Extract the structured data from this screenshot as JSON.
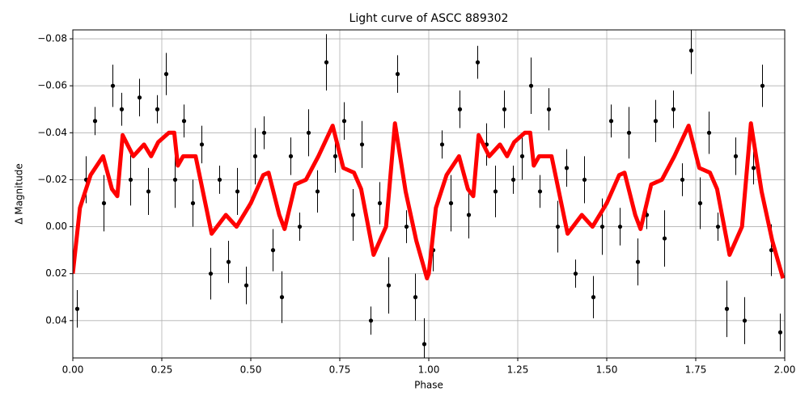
{
  "chart_data": {
    "type": "scatter",
    "title": "Light curve of ASCC 889302",
    "xlabel": "Phase",
    "ylabel": "Δ Magnitude",
    "xlim": [
      0,
      2
    ],
    "ylim": [
      0.0559,
      -0.0838
    ],
    "grid": true,
    "xticks": [
      {
        "value": 0,
        "label": "0.00"
      },
      {
        "value": 0.25,
        "label": "0.25"
      },
      {
        "value": 0.5,
        "label": "0.50"
      },
      {
        "value": 0.75,
        "label": "0.75"
      },
      {
        "value": 1,
        "label": "1.00"
      },
      {
        "value": 1.25,
        "label": "1.25"
      },
      {
        "value": 1.5,
        "label": "1.50"
      },
      {
        "value": 1.75,
        "label": "1.75"
      },
      {
        "value": 2,
        "label": "2.00"
      }
    ],
    "yticks": [
      {
        "value": -0.08,
        "label": "−0.08"
      },
      {
        "value": -0.06,
        "label": "−0.06"
      },
      {
        "value": -0.04,
        "label": "−0.04"
      },
      {
        "value": -0.02,
        "label": "−0.02"
      },
      {
        "value": 0,
        "label": "0.00"
      },
      0.02,
      0.04
    ],
    "series": [
      {
        "color": "#000000",
        "x": [
          0.0125,
          0.0375,
          0.0625,
          0.0875,
          0.1125,
          0.1375,
          0.1625,
          0.1875,
          0.2125,
          0.2375,
          0.2625,
          0.2875,
          0.3125,
          0.3375,
          0.3625,
          0.3875,
          0.4125,
          0.4375,
          0.4625,
          0.4875,
          0.5125,
          0.5375,
          0.5625,
          0.5875,
          0.6125,
          0.6375,
          0.6625,
          0.6875,
          0.7125,
          0.7375,
          0.7625,
          0.7875,
          0.8125,
          0.8375,
          0.8625,
          0.8875,
          0.9125,
          0.9375,
          0.9625,
          0.9875,
          1.0125,
          1.0375,
          1.0625,
          1.0875,
          1.1125,
          1.1375,
          1.1625,
          1.1875,
          1.2125,
          1.2375,
          1.2625,
          1.2875,
          1.3125,
          1.3375,
          1.3625,
          1.3875,
          1.4125,
          1.4375,
          1.4625,
          1.4875,
          1.5125,
          1.5375,
          1.5625,
          1.5875,
          1.6125,
          1.6375,
          1.6625,
          1.6875,
          1.7125,
          1.7375,
          1.7625,
          1.7875,
          1.8125,
          1.8375,
          1.8625,
          1.8875,
          1.9125,
          1.9375,
          1.9625,
          1.9875
        ],
        "values": [
          0.035,
          -0.02,
          -0.045,
          -0.01,
          -0.06,
          -0.05,
          -0.02,
          -0.055,
          -0.015,
          -0.05,
          -0.065,
          -0.02,
          -0.045,
          -0.01,
          -0.035,
          0.02,
          -0.02,
          0.015,
          -0.015,
          0.025,
          -0.03,
          -0.04,
          0.01,
          0.03,
          -0.03,
          0.0,
          -0.04,
          -0.015,
          -0.07,
          -0.03,
          -0.045,
          -0.005,
          -0.035,
          0.04,
          -0.01,
          0.025,
          -0.065,
          0.0,
          0.03,
          0.05,
          0.01,
          -0.035,
          -0.01,
          -0.05,
          -0.005,
          -0.07,
          -0.035,
          -0.015,
          -0.05,
          -0.02,
          -0.03,
          -0.06,
          -0.015,
          -0.05,
          0.0,
          -0.025,
          0.02,
          -0.02,
          0.03,
          0.0,
          -0.045,
          0.0,
          -0.04,
          0.015,
          -0.005,
          -0.045,
          0.005,
          -0.05,
          -0.02,
          -0.075,
          -0.01,
          -0.04,
          0.0,
          0.035,
          -0.03,
          0.04,
          -0.025,
          -0.06,
          0.01,
          0.045
        ],
        "errors": [
          0.008,
          0.01,
          0.006,
          0.012,
          0.009,
          0.007,
          0.011,
          0.008,
          0.01,
          0.006,
          0.009,
          0.012,
          0.007,
          0.01,
          0.008,
          0.011,
          0.006,
          0.009,
          0.01,
          0.008,
          0.012,
          0.007,
          0.009,
          0.011,
          0.008,
          0.006,
          0.01,
          0.009,
          0.012,
          0.007,
          0.008,
          0.011,
          0.01,
          0.006,
          0.009,
          0.012,
          0.008,
          0.007,
          0.01,
          0.011,
          0.009,
          0.006,
          0.012,
          0.008,
          0.01,
          0.007,
          0.009,
          0.011,
          0.008,
          0.006,
          0.01,
          0.012,
          0.007,
          0.009,
          0.011,
          0.008,
          0.006,
          0.01,
          0.009,
          0.012,
          0.007,
          0.008,
          0.011,
          0.01,
          0.006,
          0.009,
          0.012,
          0.008,
          0.007,
          0.01,
          0.011,
          0.009,
          0.006,
          0.012,
          0.008,
          0.01,
          0.007,
          0.009,
          0.011,
          0.008
        ]
      },
      {
        "color": "#ff0000",
        "x": [
          0,
          0.02,
          0.05,
          0.085,
          0.11,
          0.125,
          0.14,
          0.17,
          0.2,
          0.22,
          0.24,
          0.27,
          0.285,
          0.295,
          0.31,
          0.345,
          0.375,
          0.39,
          0.43,
          0.46,
          0.5,
          0.535,
          0.55,
          0.58,
          0.595,
          0.625,
          0.655,
          0.69,
          0.73,
          0.76,
          0.79,
          0.81,
          0.845,
          0.88,
          0.905,
          0.935,
          0.965,
          0.995,
          1.0,
          1.02,
          1.05,
          1.085,
          1.11,
          1.125,
          1.14,
          1.17,
          1.2,
          1.22,
          1.24,
          1.27,
          1.285,
          1.295,
          1.31,
          1.345,
          1.375,
          1.39,
          1.43,
          1.46,
          1.5,
          1.535,
          1.55,
          1.58,
          1.595,
          1.625,
          1.655,
          1.69,
          1.73,
          1.76,
          1.79,
          1.81,
          1.845,
          1.88,
          1.905,
          1.935,
          1.965,
          1.995
        ],
        "values": [
          0.02,
          -0.008,
          -0.022,
          -0.03,
          -0.016,
          -0.013,
          -0.039,
          -0.03,
          -0.035,
          -0.03,
          -0.036,
          -0.04,
          -0.04,
          -0.026,
          -0.03,
          -0.03,
          -0.008,
          0.003,
          -0.005,
          0.0,
          -0.01,
          -0.022,
          -0.023,
          -0.005,
          0.001,
          -0.018,
          -0.02,
          -0.03,
          -0.043,
          -0.025,
          -0.023,
          -0.016,
          0.012,
          0.0,
          -0.044,
          -0.015,
          0.006,
          0.022,
          0.02,
          -0.008,
          -0.022,
          -0.03,
          -0.016,
          -0.013,
          -0.039,
          -0.03,
          -0.035,
          -0.03,
          -0.036,
          -0.04,
          -0.04,
          -0.026,
          -0.03,
          -0.03,
          -0.008,
          0.003,
          -0.005,
          0.0,
          -0.01,
          -0.022,
          -0.023,
          -0.005,
          0.001,
          -0.018,
          -0.02,
          -0.03,
          -0.043,
          -0.025,
          -0.023,
          -0.016,
          0.012,
          0.0,
          -0.044,
          -0.015,
          0.006,
          0.022
        ]
      }
    ]
  }
}
